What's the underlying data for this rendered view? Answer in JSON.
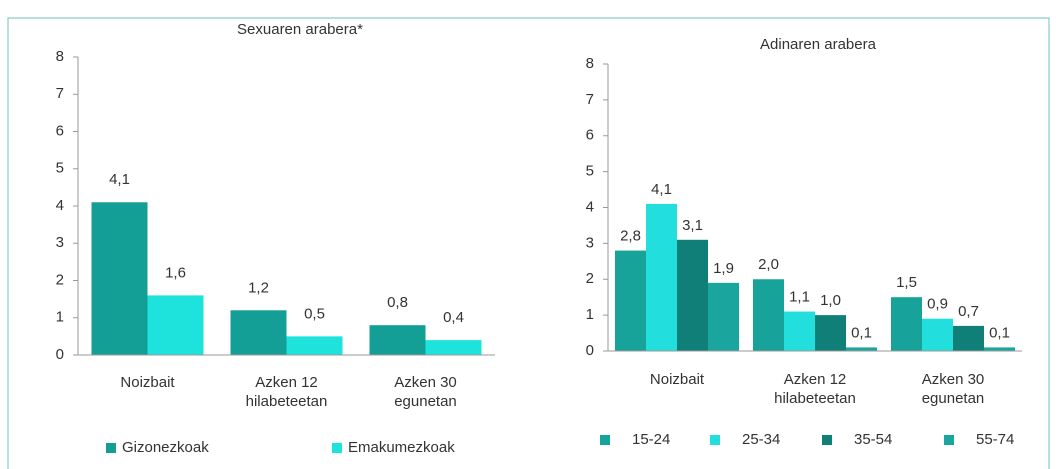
{
  "chart_data": [
    {
      "type": "bar",
      "title": "Sexuaren arabera*",
      "categories": [
        "Noizbait",
        "Azken 12 hilabeteetan",
        "Azken 30 egunetan"
      ],
      "series": [
        {
          "name": "Gizonezkoak",
          "color": "#139e96",
          "values": [
            4.1,
            1.2,
            0.8
          ],
          "value_labels": [
            "4,1",
            "1,2",
            "0,8"
          ]
        },
        {
          "name": "Emakumezkoak",
          "color": "#1ee3dc",
          "values": [
            1.6,
            0.5,
            0.4
          ],
          "value_labels": [
            "1,6",
            "0,5",
            "0,4"
          ]
        }
      ],
      "ylim": [
        0,
        8
      ],
      "yticks": [
        0,
        1,
        2,
        3,
        4,
        5,
        6,
        7,
        8
      ]
    },
    {
      "type": "bar",
      "title": "Adinaren arabera",
      "categories": [
        "Noizbait",
        "Azken 12 hilabeteetan",
        "Azken 30 egunetan"
      ],
      "series": [
        {
          "name": "15-24",
          "color": "#17a39a",
          "values": [
            2.8,
            2.0,
            1.5
          ],
          "value_labels": [
            "2,8",
            "2,0",
            "1,5"
          ]
        },
        {
          "name": "25-34",
          "color": "#22dfdd",
          "values": [
            4.1,
            1.1,
            0.9
          ],
          "value_labels": [
            "4,1",
            "1,1",
            "0,9"
          ]
        },
        {
          "name": "35-54",
          "color": "#0f7f78",
          "values": [
            3.1,
            1.0,
            0.7
          ],
          "value_labels": [
            "3,1",
            "1,0",
            "0,7"
          ]
        },
        {
          "name": "55-74",
          "color": "#1aa69e",
          "values": [
            1.9,
            0.1,
            0.1
          ],
          "value_labels": [
            "1,9",
            "0,1",
            "0,1"
          ]
        }
      ],
      "ylim": [
        0,
        8
      ],
      "yticks": [
        0,
        1,
        2,
        3,
        4,
        5,
        6,
        7,
        8
      ]
    }
  ]
}
